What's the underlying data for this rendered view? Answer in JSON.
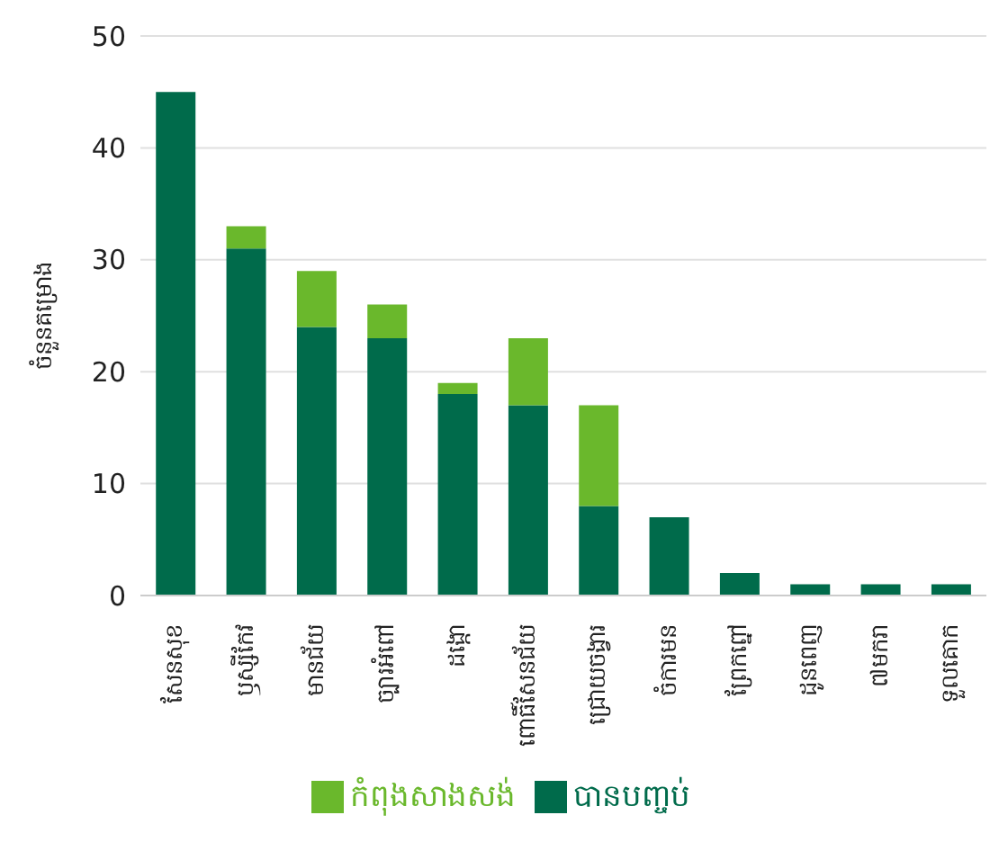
{
  "chart_data": {
    "type": "bar",
    "stacked": true,
    "ylabel": "ចំនួនគម្រោង",
    "categories": [
      "សែនសុខ",
      "ឫស្សីកែវ",
      "មានជ័យ",
      "ច្បារអំពៅ",
      "ដង្កោ",
      "ពោធិ៍សែនជ័យ",
      "ជ្រោយចង្វារ",
      "ចំការមន",
      "ព្រែកព្នៅ",
      "ដូនពេញ",
      "៧មករា",
      "ទួលគោក"
    ],
    "series": [
      {
        "name": "បានបញ្ចប់",
        "color": "#006b4b",
        "values": [
          45,
          31,
          24,
          23,
          18,
          17,
          8,
          7,
          2,
          1,
          1,
          1
        ]
      },
      {
        "name": "កំពុងសាងសង់",
        "color": "#6ab82c",
        "values": [
          0,
          2,
          5,
          3,
          1,
          6,
          9,
          0,
          0,
          0,
          0,
          0
        ]
      }
    ],
    "ylim": [
      0,
      50
    ],
    "yticks": [
      0,
      10,
      20,
      30,
      40,
      50
    ],
    "grid": "y",
    "legend": "bottom"
  }
}
